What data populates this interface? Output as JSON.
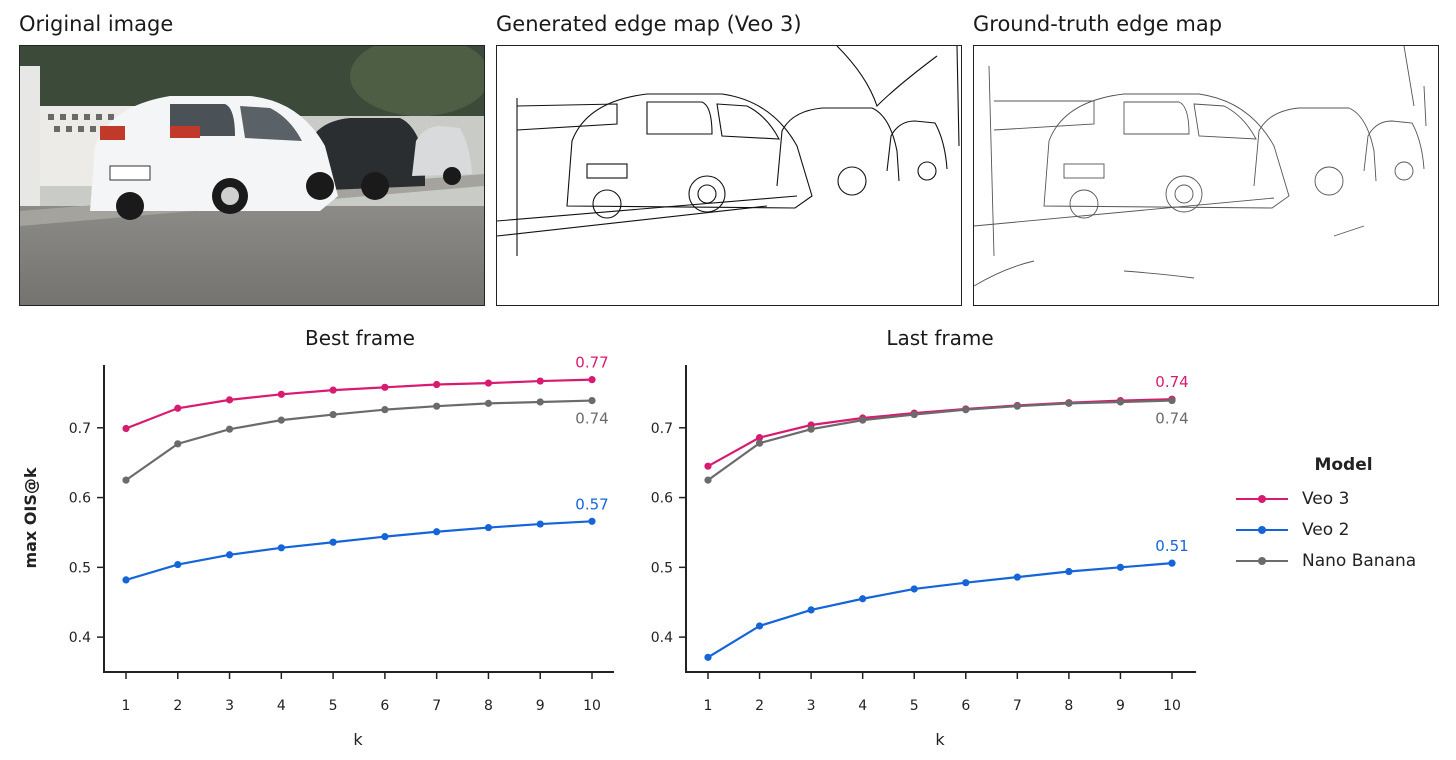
{
  "images": [
    {
      "title": "Original image"
    },
    {
      "title": "Generated edge map (Veo 3)"
    },
    {
      "title": "Ground-truth edge map"
    }
  ],
  "legend": {
    "title": "Model",
    "items": [
      {
        "label": "Veo 3",
        "color": "#d81b71"
      },
      {
        "label": "Veo 2",
        "color": "#1565d8"
      },
      {
        "label": "Nano Banana",
        "color": "#6b6b6b"
      }
    ]
  },
  "chart_data": [
    {
      "type": "line",
      "title": "Best frame",
      "xlabel": "k",
      "ylabel": "max OIS@k",
      "x": [
        1,
        2,
        3,
        4,
        5,
        6,
        7,
        8,
        9,
        10
      ],
      "ylim": [
        0.35,
        0.79
      ],
      "yticks": [
        0.4,
        0.5,
        0.6,
        0.7
      ],
      "series": [
        {
          "name": "Veo 3",
          "color": "#d81b71",
          "values": [
            0.699,
            0.728,
            0.74,
            0.748,
            0.754,
            0.758,
            0.762,
            0.764,
            0.767,
            0.769
          ],
          "end_label": "0.77"
        },
        {
          "name": "Veo 2",
          "color": "#1565d8",
          "values": [
            0.482,
            0.504,
            0.518,
            0.528,
            0.536,
            0.544,
            0.551,
            0.557,
            0.562,
            0.566
          ],
          "end_label": "0.57"
        },
        {
          "name": "Nano Banana",
          "color": "#6b6b6b",
          "values": [
            0.625,
            0.677,
            0.698,
            0.711,
            0.719,
            0.726,
            0.731,
            0.735,
            0.737,
            0.739
          ],
          "end_label": "0.74"
        }
      ]
    },
    {
      "type": "line",
      "title": "Last frame",
      "xlabel": "k",
      "ylabel": "",
      "x": [
        1,
        2,
        3,
        4,
        5,
        6,
        7,
        8,
        9,
        10
      ],
      "ylim": [
        0.35,
        0.79
      ],
      "yticks": [
        0.4,
        0.5,
        0.6,
        0.7
      ],
      "series": [
        {
          "name": "Veo 3",
          "color": "#d81b71",
          "values": [
            0.645,
            0.686,
            0.704,
            0.714,
            0.721,
            0.727,
            0.732,
            0.736,
            0.739,
            0.741
          ],
          "end_label": "0.74"
        },
        {
          "name": "Veo 2",
          "color": "#1565d8",
          "values": [
            0.371,
            0.416,
            0.439,
            0.455,
            0.469,
            0.478,
            0.486,
            0.494,
            0.5,
            0.506
          ],
          "end_label": "0.51"
        },
        {
          "name": "Nano Banana",
          "color": "#6b6b6b",
          "values": [
            0.625,
            0.678,
            0.698,
            0.711,
            0.719,
            0.726,
            0.731,
            0.735,
            0.737,
            0.739
          ],
          "end_label": "0.74"
        }
      ]
    }
  ]
}
